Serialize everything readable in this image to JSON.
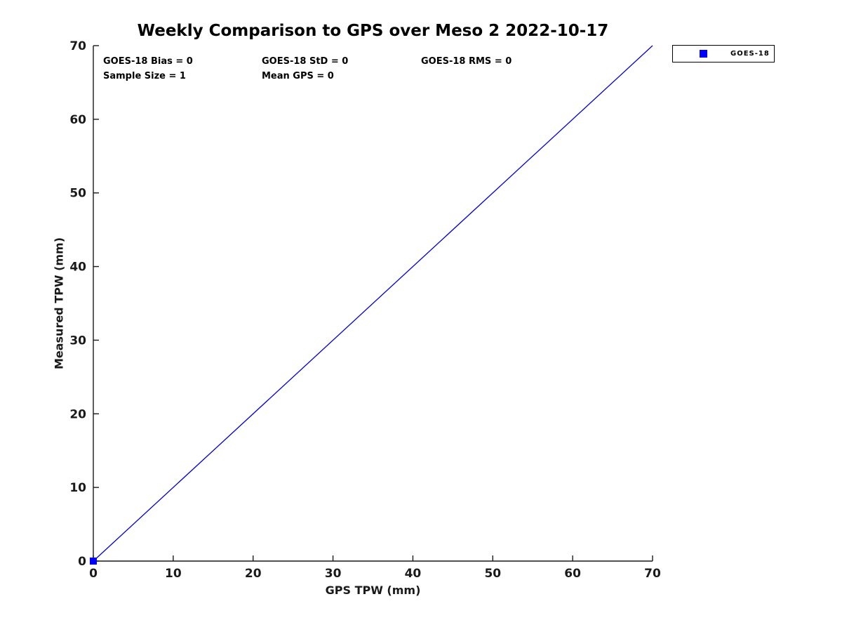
{
  "chart_data": {
    "type": "scatter",
    "title": "Weekly Comparison to GPS over Meso 2 2022-10-17",
    "xlabel": "GPS TPW (mm)",
    "ylabel": "Measured TPW (mm)",
    "xlim": [
      0,
      70
    ],
    "ylim": [
      0,
      70
    ],
    "xticks": [
      0,
      10,
      20,
      30,
      40,
      50,
      60,
      70
    ],
    "yticks": [
      0,
      10,
      20,
      30,
      40,
      50,
      60,
      70
    ],
    "grid": false,
    "axis_color": "#1a1a1a",
    "legend_position": "top-right-outside",
    "series": [
      {
        "name": "identity-line",
        "type": "line",
        "color": "#0000dd",
        "x": [
          0,
          70
        ],
        "y": [
          0,
          70
        ]
      },
      {
        "name": "GOES-18",
        "type": "scatter",
        "marker": "square",
        "color": "#0000ff",
        "points": [
          [
            0,
            0
          ]
        ]
      }
    ],
    "annotations": [
      "GOES-18 Bias = 0",
      "GOES-18 StD = 0",
      "GOES-18 RMS = 0",
      "Sample Size = 1",
      "Mean GPS = 0"
    ]
  },
  "legend": {
    "label": "GOES-18",
    "marker_color": "#0000ff"
  }
}
